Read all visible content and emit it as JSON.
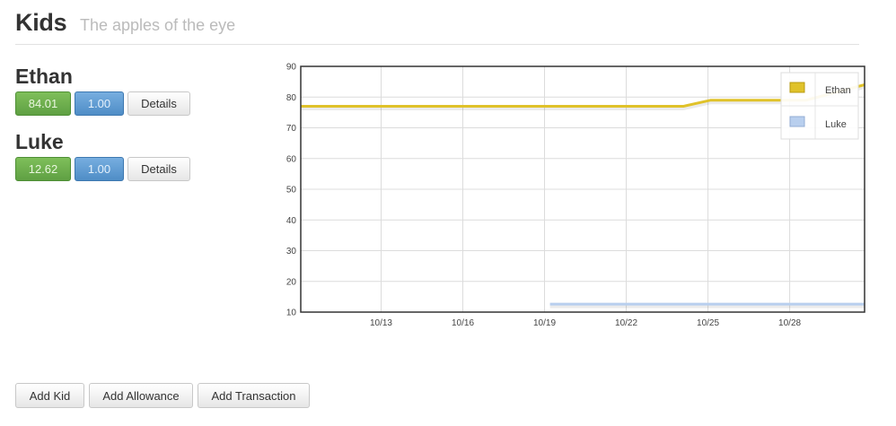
{
  "header": {
    "title": "Kids",
    "subtitle": "The apples of the eye"
  },
  "kids": [
    {
      "name": "Ethan",
      "balance": "84.01",
      "rate": "1.00",
      "details_label": "Details"
    },
    {
      "name": "Luke",
      "balance": "12.62",
      "rate": "1.00",
      "details_label": "Details"
    }
  ],
  "actions": {
    "add_kid": "Add Kid",
    "add_allowance": "Add Allowance",
    "add_transaction": "Add Transaction"
  },
  "colors": {
    "balance_button": "#6aab4c",
    "rate_button": "#5b98d0",
    "ethan_series": "#e0c22a",
    "luke_series": "#b8cfee"
  },
  "chart_data": {
    "type": "line",
    "y_ticks": [
      "10",
      "20",
      "30",
      "40",
      "50",
      "60",
      "70",
      "80",
      "90"
    ],
    "ylim": [
      10,
      90
    ],
    "xlim": [
      10.05,
      30.75
    ],
    "x_ticks": [
      {
        "label": "10/13",
        "day": 13
      },
      {
        "label": "10/16",
        "day": 16
      },
      {
        "label": "10/19",
        "day": 19
      },
      {
        "label": "10/22",
        "day": 22
      },
      {
        "label": "10/25",
        "day": 25
      },
      {
        "label": "10/28",
        "day": 28
      }
    ],
    "grid": true,
    "legend_position": "top-right",
    "series": [
      {
        "name": "Ethan",
        "color": "#e0c22a",
        "points": [
          [
            10.05,
            77
          ],
          [
            24.1,
            77
          ],
          [
            25.1,
            79
          ],
          [
            28.6,
            79
          ],
          [
            30.75,
            84
          ]
        ]
      },
      {
        "name": "Luke",
        "color": "#b8cfee",
        "points": [
          [
            19.2,
            12.6
          ],
          [
            30.75,
            12.6
          ]
        ]
      }
    ]
  }
}
